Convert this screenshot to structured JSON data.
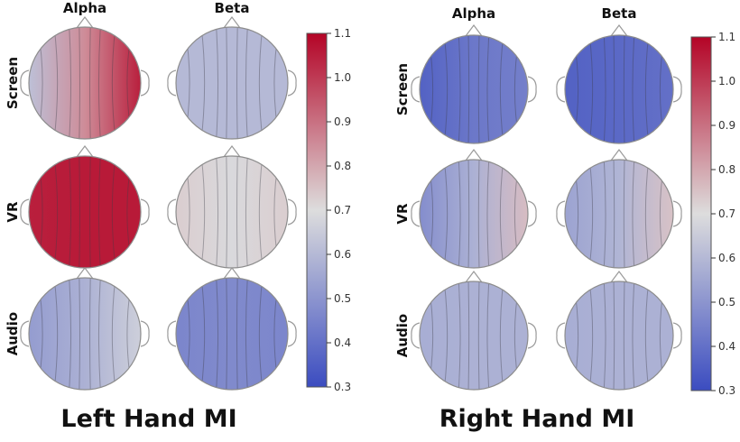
{
  "panels": [
    {
      "title": "Left Hand MI",
      "columns": [
        "Alpha",
        "Beta"
      ],
      "rows": [
        "Screen",
        "VR",
        "Audio"
      ],
      "maps": [
        [
          {
            "left": 0.62,
            "center": 0.85,
            "right": 1.05
          },
          {
            "left": 0.6,
            "center": 0.6,
            "right": 0.6
          }
        ],
        [
          {
            "left": 1.05,
            "center": 1.06,
            "right": 1.06
          },
          {
            "left": 0.73,
            "center": 0.69,
            "right": 0.73
          }
        ],
        [
          {
            "left": 0.52,
            "center": 0.58,
            "right": 0.66
          },
          {
            "left": 0.46,
            "center": 0.47,
            "right": 0.46
          }
        ]
      ]
    },
    {
      "title": "Right Hand MI",
      "columns": [
        "Alpha",
        "Beta"
      ],
      "rows": [
        "Screen",
        "VR",
        "Audio"
      ],
      "maps": [
        [
          {
            "left": 0.36,
            "center": 0.42,
            "right": 0.44
          },
          {
            "left": 0.36,
            "center": 0.38,
            "right": 0.4
          }
        ],
        [
          {
            "left": 0.48,
            "center": 0.58,
            "right": 0.76
          },
          {
            "left": 0.54,
            "center": 0.59,
            "right": 0.75
          }
        ],
        [
          {
            "left": 0.57,
            "center": 0.58,
            "right": 0.58
          },
          {
            "left": 0.57,
            "center": 0.58,
            "right": 0.58
          }
        ]
      ]
    }
  ],
  "colorbar": {
    "min": 0.3,
    "max": 1.1,
    "ticks": [
      "0.3",
      "0.4",
      "0.5",
      "0.6",
      "0.7",
      "0.8",
      "0.9",
      "1.0",
      "1.1"
    ],
    "colors": {
      "low": "#3b4cc0",
      "mid": "#dddddd",
      "high": "#b40426"
    }
  }
}
